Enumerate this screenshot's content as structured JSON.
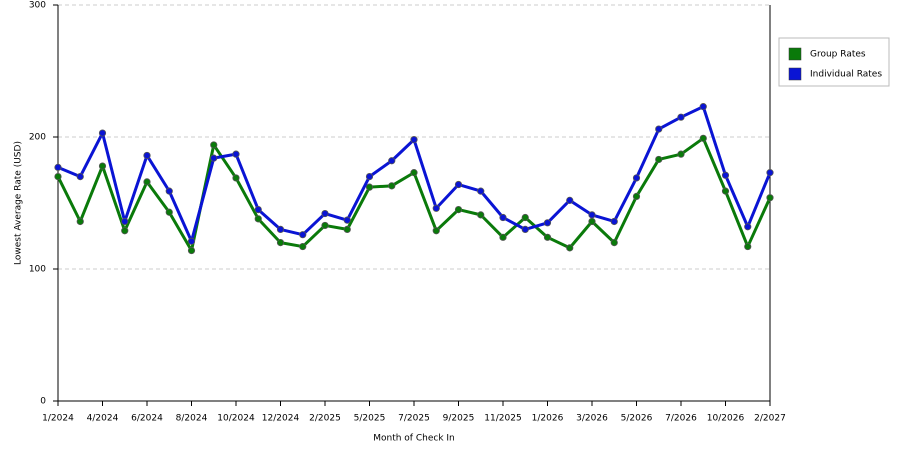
{
  "chart_data": {
    "type": "line",
    "x_label": "Month of Check In",
    "y_label": "Lowest Average Rate (USD)",
    "categories": [
      "1/2024",
      null,
      "4/2024",
      null,
      "6/2024",
      null,
      "8/2024",
      null,
      "10/2024",
      null,
      "12/2024",
      null,
      "2/2025",
      null,
      "5/2025",
      null,
      "7/2025",
      null,
      "9/2025",
      null,
      "11/2025",
      null,
      "1/2026",
      null,
      "3/2026",
      null,
      "5/2026",
      null,
      "7/2026",
      null,
      "10/2026",
      null,
      "2/2027"
    ],
    "series": [
      {
        "name": "Group Rates",
        "color": "#0a7a0a",
        "values": [
          170,
          136,
          178,
          129,
          166,
          143,
          114,
          194,
          169,
          138,
          120,
          117,
          133,
          130,
          162,
          163,
          173,
          129,
          145,
          141,
          124,
          139,
          124,
          116,
          136,
          120,
          155,
          183,
          187,
          199,
          159,
          117,
          154
        ]
      },
      {
        "name": "Individual Rates",
        "color": "#0a14d4",
        "values": [
          177,
          170,
          203,
          136,
          186,
          159,
          121,
          184,
          187,
          145,
          130,
          126,
          142,
          137,
          170,
          182,
          198,
          146,
          164,
          159,
          139,
          130,
          135,
          152,
          141,
          136,
          169,
          206,
          215,
          223,
          171,
          132,
          173
        ]
      }
    ],
    "ylim": [
      0,
      300
    ],
    "yticks": [
      0,
      100,
      200,
      300
    ],
    "grid": true,
    "legend": "right"
  }
}
